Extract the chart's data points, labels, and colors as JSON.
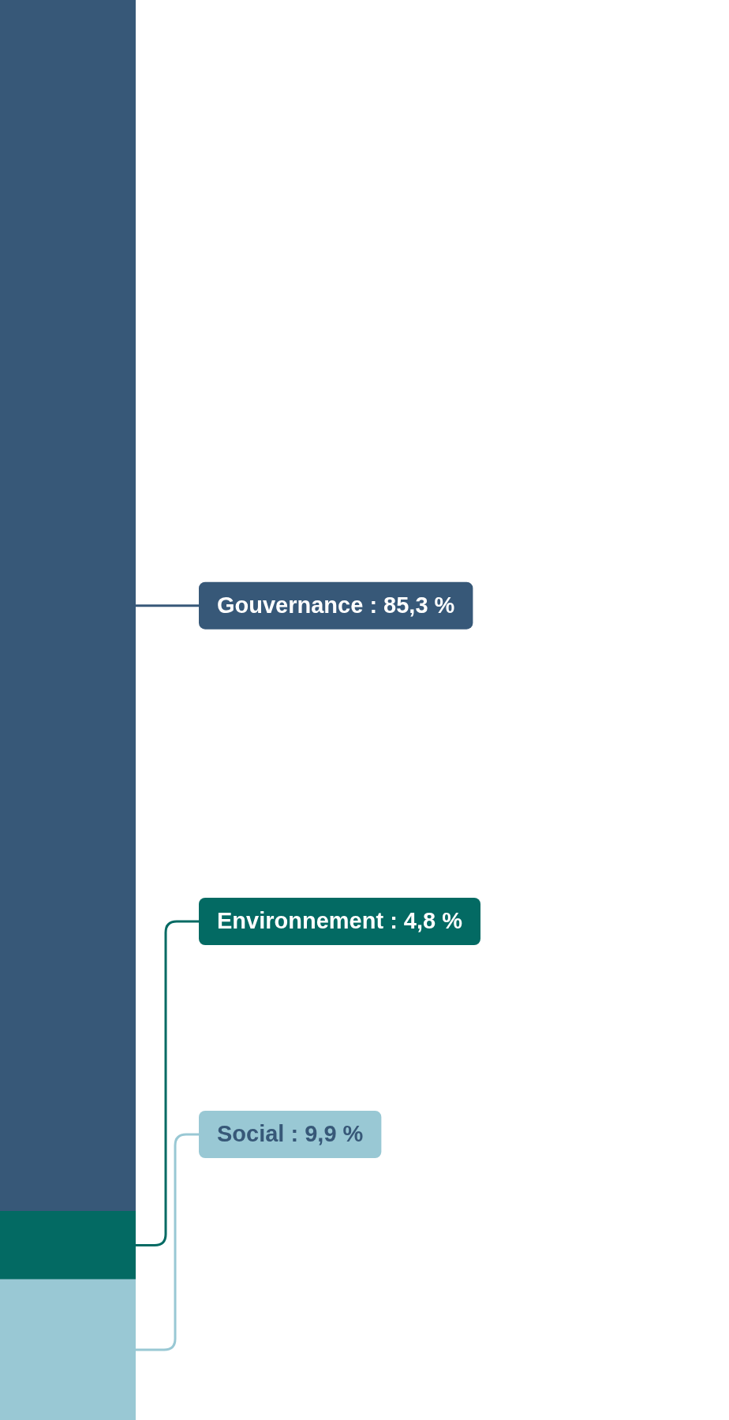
{
  "chart_data": {
    "type": "bar",
    "stacked": true,
    "categories": [
      null
    ],
    "series": [
      {
        "color": "#99c8d4",
        "values": [
          9.9
        ],
        "value_labels": [
          "Social : 9,9 %"
        ]
      },
      {
        "color": "#036a63",
        "values": [
          4.8
        ],
        "value_labels": [
          "Environnement : 4,8 %"
        ]
      },
      {
        "color": "#375878",
        "values": [
          85.3
        ],
        "value_labels": [
          "Gouvernance : 85,3 %"
        ]
      }
    ]
  }
}
